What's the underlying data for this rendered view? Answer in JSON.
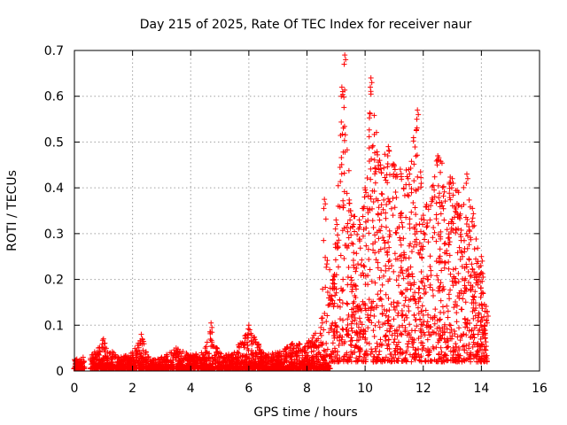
{
  "chart_data": {
    "type": "scatter",
    "title": "Day 215 of 2025, Rate Of TEC Index for receiver naur",
    "xlabel": "GPS time / hours",
    "ylabel": "ROTI / TECUs",
    "xlim": [
      0,
      16
    ],
    "ylim": [
      0,
      0.7
    ],
    "x_ticks": [
      0,
      2,
      4,
      6,
      8,
      10,
      12,
      14,
      16
    ],
    "y_ticks": [
      0,
      0.1,
      0.2,
      0.3,
      0.4,
      0.5,
      0.6,
      0.7
    ],
    "x_tick_labels": [
      "0",
      "2",
      "4",
      "6",
      "8",
      "10",
      "12",
      "14",
      "16"
    ],
    "y_tick_labels": [
      "0",
      "0.1",
      "0.2",
      "0.3",
      "0.4",
      "0.5",
      "0.6",
      "0.7"
    ],
    "grid": true,
    "marker": "+",
    "color": "#ff0000",
    "series": [
      {
        "name": "ROTI",
        "envelope_note": "approximate upper envelope read from plot (x hours, y TECU/min)",
        "envelope": [
          [
            0.0,
            0.025
          ],
          [
            0.3,
            0.03
          ],
          [
            0.6,
            0.035
          ],
          [
            1.0,
            0.07
          ],
          [
            1.5,
            0.03
          ],
          [
            2.0,
            0.04
          ],
          [
            2.3,
            0.08
          ],
          [
            2.6,
            0.025
          ],
          [
            3.0,
            0.03
          ],
          [
            3.5,
            0.05
          ],
          [
            4.0,
            0.035
          ],
          [
            4.5,
            0.05
          ],
          [
            4.7,
            0.105
          ],
          [
            5.0,
            0.04
          ],
          [
            5.5,
            0.04
          ],
          [
            6.0,
            0.1
          ],
          [
            6.5,
            0.04
          ],
          [
            7.0,
            0.04
          ],
          [
            7.5,
            0.06
          ],
          [
            8.0,
            0.06
          ],
          [
            8.5,
            0.115
          ],
          [
            8.6,
            0.375
          ],
          [
            8.9,
            0.2
          ],
          [
            9.0,
            0.33
          ],
          [
            9.2,
            0.62
          ],
          [
            9.3,
            0.69
          ],
          [
            9.5,
            0.35
          ],
          [
            9.8,
            0.33
          ],
          [
            10.0,
            0.4
          ],
          [
            10.2,
            0.64
          ],
          [
            10.5,
            0.46
          ],
          [
            10.8,
            0.49
          ],
          [
            11.0,
            0.45
          ],
          [
            11.5,
            0.44
          ],
          [
            11.8,
            0.57
          ],
          [
            12.0,
            0.34
          ],
          [
            12.5,
            0.47
          ],
          [
            13.0,
            0.42
          ],
          [
            13.5,
            0.43
          ],
          [
            14.0,
            0.25
          ],
          [
            14.2,
            0.13
          ]
        ],
        "baseline_note": "dense floor of points ~0.0-0.02 between 0.55 h and 14.2 h; floor rises to ~0.05-0.1 after 9 h"
      }
    ]
  }
}
